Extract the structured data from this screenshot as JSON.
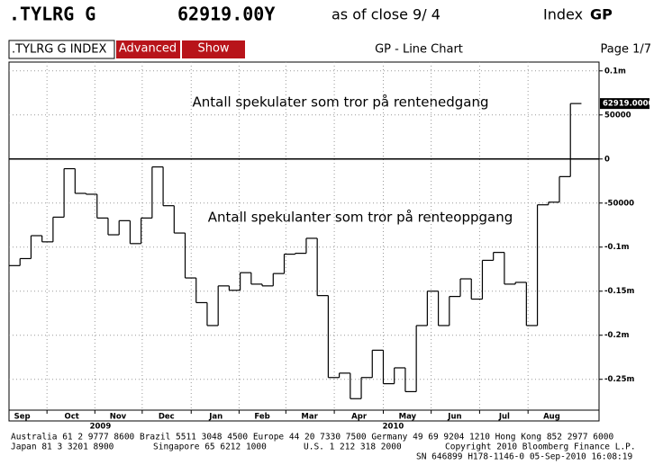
{
  "header": {
    "ticker": ".TYLRG G",
    "price": "62919.00Y",
    "close": "as of close  9/ 4",
    "index": "Index",
    "gp": "GP"
  },
  "toolbar": {
    "security": ".TYLRG G INDEX",
    "advanced": "Advanced",
    "show": "Show",
    "chart_name": "GP - Line Chart",
    "page": "Page 1/7"
  },
  "chart_data": {
    "type": "step",
    "annotations": [
      "Antall spekulater som tror på rentenedgang",
      "Antall spekulanter som tror på renteoppgang"
    ],
    "x": [
      0,
      1,
      2,
      3,
      4,
      5,
      6,
      7,
      8,
      9,
      10,
      11,
      12,
      13,
      14,
      15,
      16,
      17,
      18,
      19,
      20,
      21,
      22,
      23,
      24,
      25,
      26,
      27,
      28,
      29,
      30,
      31,
      32,
      33,
      34,
      35,
      36,
      37,
      38,
      39,
      40,
      41,
      42,
      43,
      44,
      45,
      46,
      47,
      48,
      49,
      50,
      51
    ],
    "values": [
      -121000,
      -113000,
      -87000,
      -94000,
      -66000,
      -11000,
      -39000,
      -40000,
      -67000,
      -86000,
      -70000,
      -96000,
      -67000,
      -9000,
      -53000,
      -84000,
      -135000,
      -163000,
      -189000,
      -144000,
      -149000,
      -129000,
      -142000,
      -144000,
      -130000,
      -108000,
      -107000,
      -90000,
      -155000,
      -248000,
      -243000,
      -272000,
      -248000,
      -217000,
      -255000,
      -237000,
      -264000,
      -189000,
      -150000,
      -189000,
      -156000,
      -136000,
      -159000,
      -115000,
      -106000,
      -142000,
      -140000,
      -189000,
      -52000,
      -49000,
      -20000,
      62919
    ],
    "color": "#000000",
    "last_value": {
      "value": 62919,
      "label": "62919.0000"
    },
    "reference_line": 0,
    "xlim": [
      0,
      53.6
    ],
    "xticks": [
      {
        "value": 1.2,
        "label": "Sep"
      },
      {
        "value": 5.7,
        "label": "Oct"
      },
      {
        "value": 9.9,
        "label": "Nov"
      },
      {
        "value": 14.3,
        "label": "Dec"
      },
      {
        "value": 18.8,
        "label": "Jan"
      },
      {
        "value": 23.0,
        "label": "Feb"
      },
      {
        "value": 27.3,
        "label": "Mar"
      },
      {
        "value": 31.8,
        "label": "Apr"
      },
      {
        "value": 36.2,
        "label": "May"
      },
      {
        "value": 40.5,
        "label": "Jun"
      },
      {
        "value": 45.0,
        "label": "Jul"
      },
      {
        "value": 49.3,
        "label": "Aug"
      }
    ],
    "year_ticks": [
      {
        "value": 8.3,
        "label": "2009"
      },
      {
        "value": 34.9,
        "label": "2010"
      }
    ],
    "ylim": [
      -285000,
      110000
    ],
    "yticks": [
      {
        "value": 100000,
        "label": "0.1m"
      },
      50000,
      0,
      -50000,
      {
        "value": -100000,
        "label": "-0.1m"
      },
      {
        "value": -150000,
        "label": "-0.15m"
      },
      {
        "value": -200000,
        "label": "-0.2m"
      },
      {
        "value": -250000,
        "label": "-0.25m"
      }
    ],
    "grid": true
  },
  "footer": {
    "line1": "Australia 61 2 9777 8600 Brazil 5511 3048 4500 Europe 44 20 7330 7500 Germany 49 69 9204 1210 Hong Kong 852 2977 6000",
    "line2": [
      "Japan 81 3 3201 8900",
      "Singapore 65 6212 1000",
      "U.S. 1 212 318 2000",
      "Copyright 2010 Bloomberg Finance L.P."
    ],
    "line3": "SN 646899 H178-1146-0 05-Sep-2010 16:08:19"
  }
}
